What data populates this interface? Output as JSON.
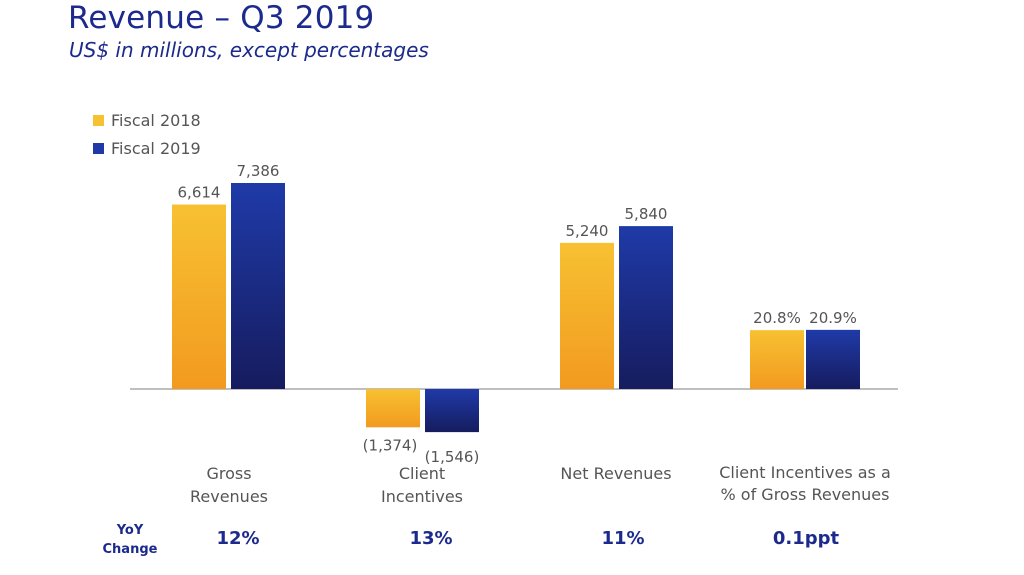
{
  "title": "Revenue – Q3 2019",
  "subtitle": "US$ in millions, except percentages",
  "colors": {
    "fiscal2018_top": "#f7c132",
    "fiscal2018_bottom": "#f29a1f",
    "fiscal2019_top": "#1f3aa8",
    "fiscal2019_bottom": "#161c5e",
    "text_dark": "#1b2a8c",
    "text_gray": "#555555",
    "axis": "#999999"
  },
  "yoy": {
    "label_line1": "YoY",
    "label_line2": "Change"
  },
  "chart_data": {
    "type": "bar",
    "title": "Revenue – Q3 2019",
    "subtitle": "US$ in millions, except percentages",
    "legend_position": "top-left",
    "grid": false,
    "categories": [
      {
        "line1": "Gross",
        "line2": "Revenues"
      },
      {
        "line1": "Client",
        "line2": "Incentives"
      },
      {
        "line1": "Net Revenues",
        "line2": ""
      },
      {
        "line1": "Client Incentives as a",
        "line2": "% of Gross Revenues"
      }
    ],
    "series": [
      {
        "name": "Fiscal 2018",
        "values": [
          6614,
          -1374,
          5240,
          20.8
        ],
        "labels": [
          "6,614",
          "(1,374)",
          "5,240",
          "20.8%"
        ]
      },
      {
        "name": "Fiscal 2019",
        "values": [
          7386,
          -1546,
          5840,
          20.9
        ],
        "labels": [
          "7,386",
          "(1,546)",
          "5,840",
          "20.9%"
        ]
      }
    ],
    "yoy_change": [
      "12%",
      "13%",
      "11%",
      "0.1ppt"
    ]
  }
}
